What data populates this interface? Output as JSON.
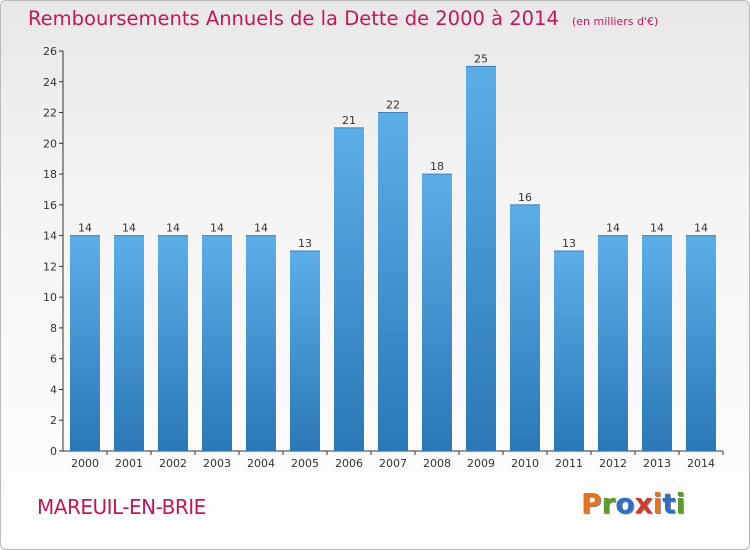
{
  "chart_data": {
    "type": "bar",
    "title": "Remboursements Annuels de la Dette de 2000 à 2014",
    "unit": "(en milliers d'€)",
    "categories": [
      "2000",
      "2001",
      "2002",
      "2003",
      "2004",
      "2005",
      "2006",
      "2007",
      "2008",
      "2009",
      "2010",
      "2011",
      "2012",
      "2013",
      "2014"
    ],
    "values": [
      14,
      14,
      14,
      14,
      14,
      13,
      21,
      22,
      18,
      25,
      16,
      13,
      14,
      14,
      14
    ],
    "ylim": [
      0,
      26
    ],
    "yticks": [
      0,
      2,
      4,
      6,
      8,
      10,
      12,
      14,
      16,
      18,
      20,
      22,
      24,
      26
    ],
    "grid": false,
    "bar_color_top": "#5caee8",
    "bar_color_bottom": "#2a78b7",
    "title_color": "#c2185b"
  },
  "footer": {
    "commune": "MAREUIL-EN-BRIE",
    "brand": "Proxiti",
    "brand_colors": [
      "#e8731c",
      "#5b9b2a",
      "#2f6fc2",
      "#d13b2d",
      "#e8731c",
      "#2f6fc2",
      "#5b9b2a"
    ]
  }
}
